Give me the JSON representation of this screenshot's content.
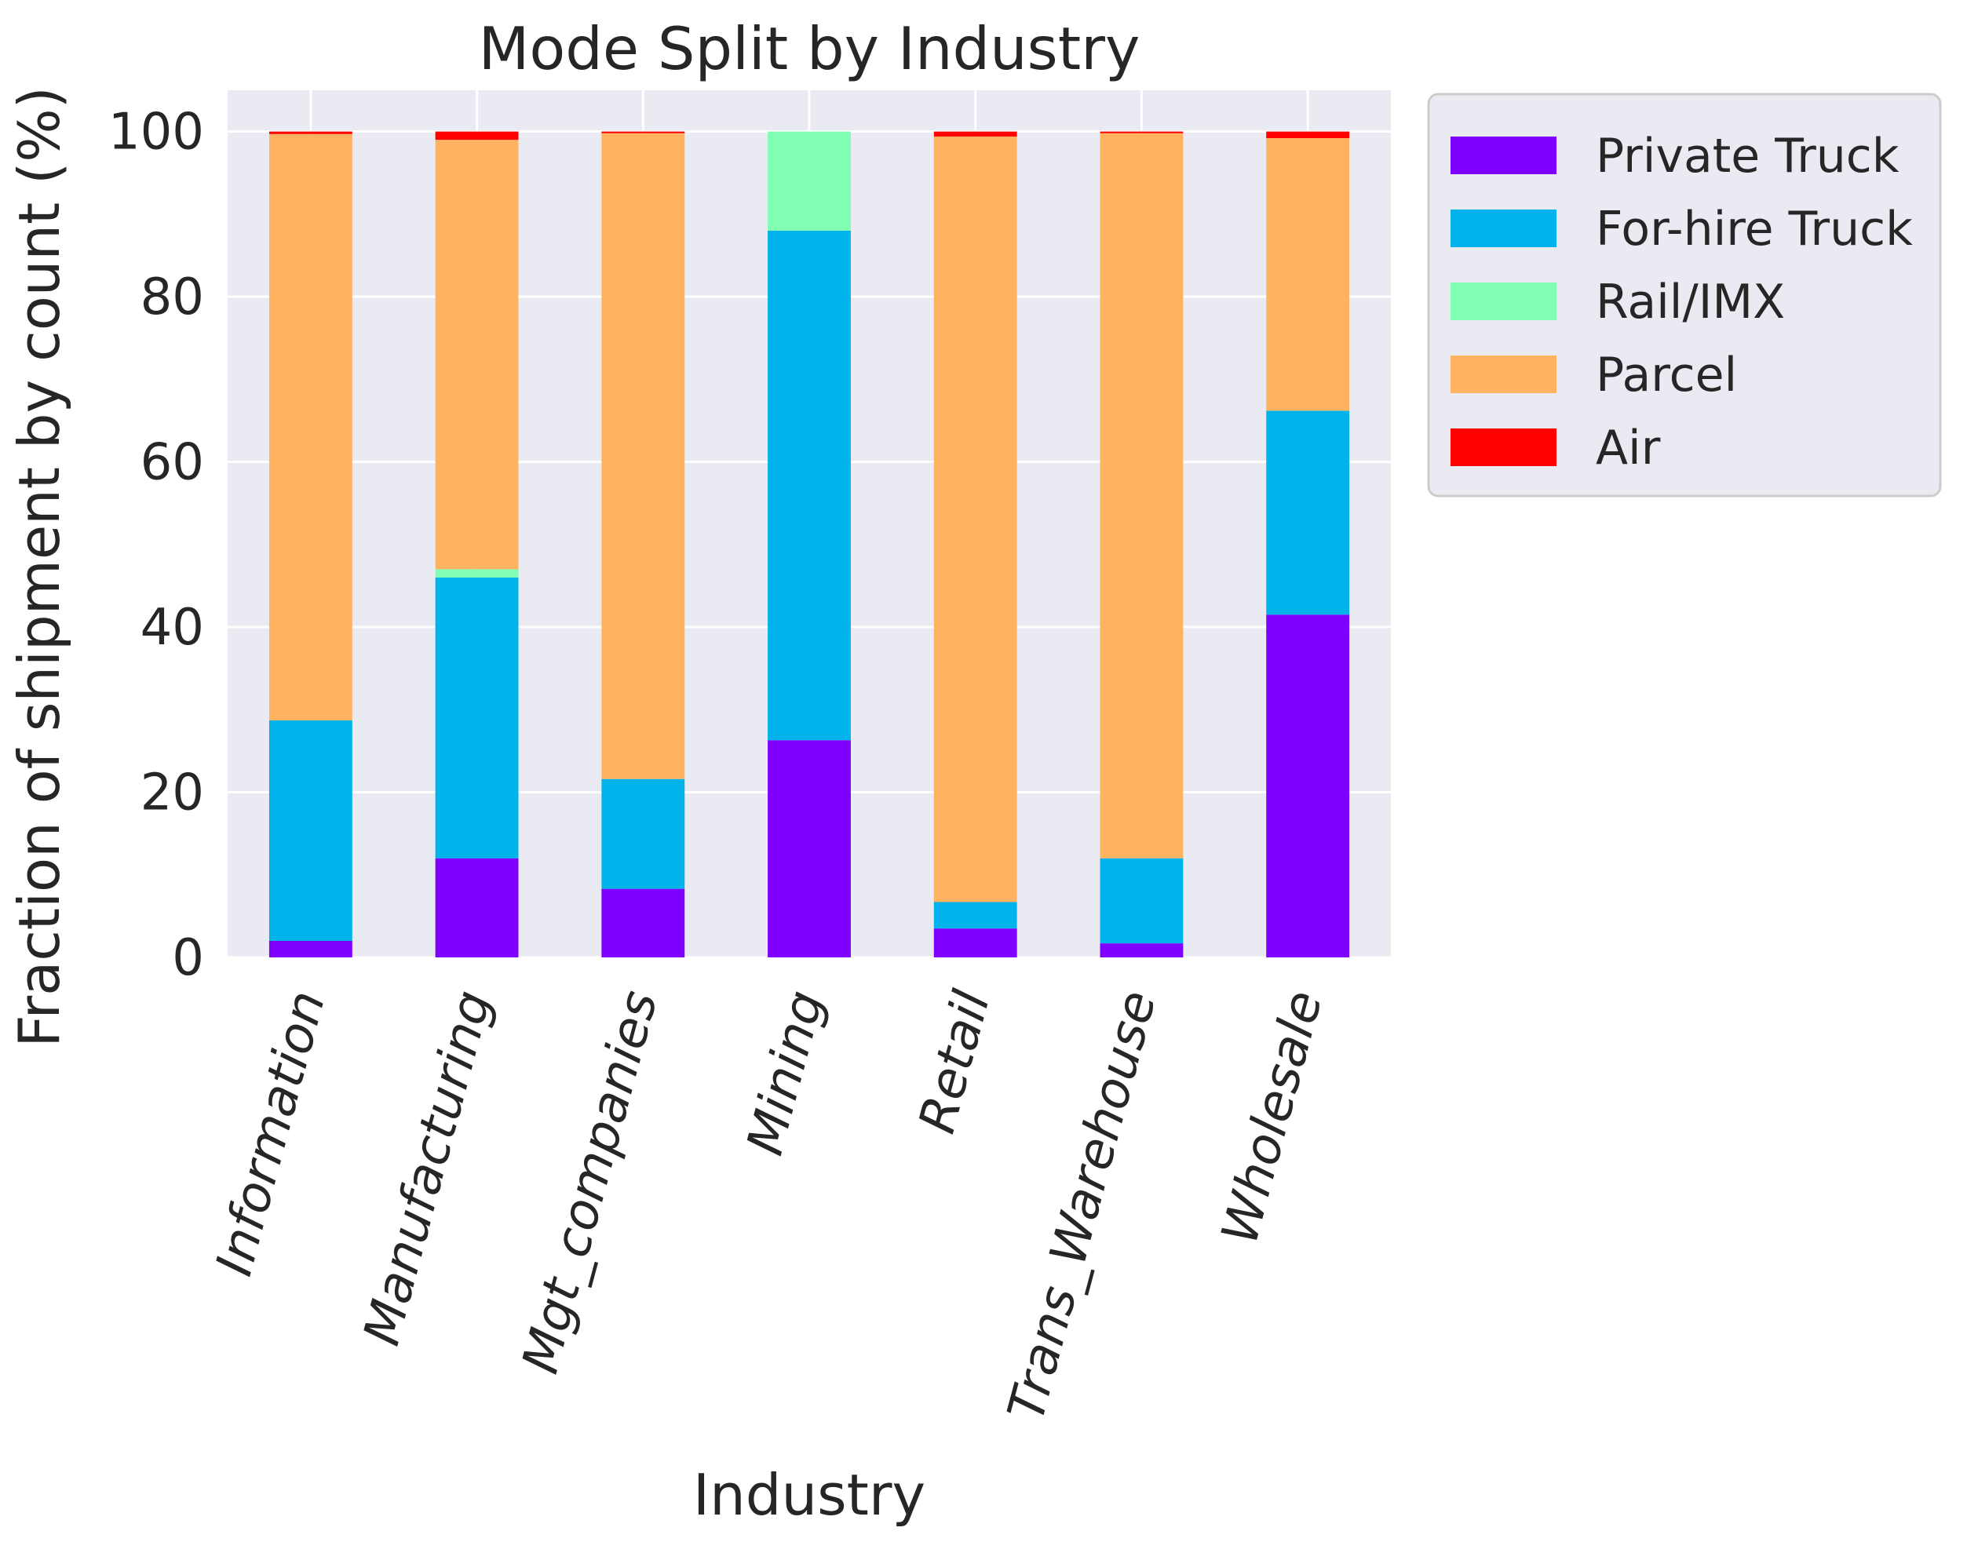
{
  "chart_data": {
    "type": "bar",
    "stacked": true,
    "title": "Mode Split by Industry",
    "xlabel": "Industry",
    "ylabel": "Fraction of shipment by count (%)",
    "ylim": [
      0,
      105
    ],
    "yticks": [
      "0",
      "20",
      "40",
      "60",
      "80",
      "100"
    ],
    "grid": true,
    "legend_position": "outside-upper-right",
    "categories": [
      "Information",
      "Manufacturing",
      "Mgt_companies",
      "Mining",
      "Retail",
      "Trans_Warehouse",
      "Wholesale"
    ],
    "series": [
      {
        "name": "Private Truck",
        "color": "#8000ff",
        "values": [
          2.0,
          12.0,
          8.3,
          26.3,
          3.5,
          1.7,
          41.5
        ]
      },
      {
        "name": "For-hire Truck",
        "color": "#00b4eb",
        "values": [
          26.7,
          34.0,
          13.3,
          61.7,
          3.2,
          10.3,
          24.7
        ]
      },
      {
        "name": "Rail/IMX",
        "color": "#80ffb4",
        "values": [
          0.0,
          1.0,
          0.0,
          12.0,
          0.0,
          0.0,
          0.0
        ]
      },
      {
        "name": "Parcel",
        "color": "#ffb360",
        "values": [
          71.0,
          52.0,
          78.2,
          0.0,
          92.7,
          87.8,
          33.0
        ]
      },
      {
        "name": "Air",
        "color": "#ff0000",
        "values": [
          0.3,
          1.0,
          0.2,
          0.0,
          0.6,
          0.2,
          0.8
        ]
      }
    ],
    "plot_background": "#eaeaf2",
    "grid_color": "#ffffff"
  }
}
